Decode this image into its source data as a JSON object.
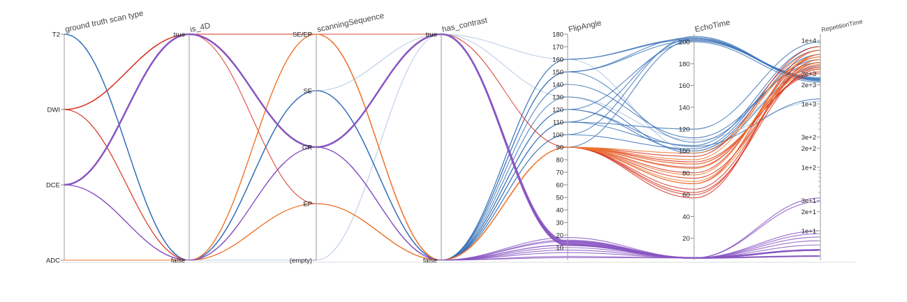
{
  "chart_data": {
    "type": "parallel-coordinates",
    "axes": [
      {
        "name": "ground truth scan type",
        "kind": "category",
        "ticks": [
          "T2",
          "DWI",
          "DCE",
          "ADC"
        ]
      },
      {
        "name": "is_4D",
        "kind": "category",
        "ticks": [
          "true",
          "false"
        ]
      },
      {
        "name": "scanningSequence",
        "kind": "category",
        "ticks": [
          "SE/EP",
          "SE",
          "GR",
          "EP",
          "(empty)"
        ]
      },
      {
        "name": "has_contrast",
        "kind": "category",
        "ticks": [
          "true",
          "false"
        ]
      },
      {
        "name": "FlipAngle",
        "kind": "linear",
        "range": [
          0,
          180
        ],
        "ticks": [
          10,
          20,
          30,
          40,
          50,
          60,
          70,
          80,
          90,
          100,
          110,
          120,
          130,
          140,
          150,
          160,
          170,
          180
        ]
      },
      {
        "name": "EchoTime",
        "kind": "linear",
        "range": [
          0,
          207
        ],
        "ticks": [
          20,
          40,
          60,
          80,
          100,
          120,
          140,
          160,
          180,
          200
        ]
      },
      {
        "name": "RepetitionTime",
        "kind": "log",
        "range": [
          3.45,
          12560
        ],
        "ticks": [
          "1e+4",
          "3e+3",
          "2e+3",
          "1e+3",
          "3e+2",
          "2e+2",
          "1e+2",
          "3e+1",
          "2e+1",
          "1e+1"
        ],
        "tick_values": [
          10000,
          3000,
          2000,
          1000,
          300,
          200,
          100,
          30,
          20,
          10
        ]
      }
    ],
    "color_by": "ground truth scan type",
    "colors": {
      "T2": "#3b73b9",
      "DWI": "#d7301f",
      "DCE": "#8856c2",
      "ADC": "#f0782d"
    },
    "records": [
      [
        "T2",
        "false",
        "SE",
        "false",
        160,
        203,
        2500
      ],
      [
        "T2",
        "false",
        "SE",
        "false",
        160,
        202,
        2400
      ],
      [
        "T2",
        "false",
        "SE",
        "false",
        150,
        204,
        2300
      ],
      [
        "T2",
        "false",
        "SE",
        "false",
        150,
        201,
        2600
      ],
      [
        "T2",
        "false",
        "SE",
        "false",
        120,
        200,
        2200
      ],
      [
        "T2",
        "false",
        "SE",
        "false",
        110,
        203,
        2450
      ],
      [
        "T2",
        "false",
        "SE",
        "false",
        100,
        205,
        2350
      ],
      [
        "T2",
        "false",
        "SE",
        "false",
        90,
        202,
        2500
      ],
      [
        "T2",
        "false",
        "SE",
        "false",
        120,
        100,
        6000
      ],
      [
        "T2",
        "false",
        "SE",
        "false",
        110,
        120,
        9500
      ],
      [
        "T2",
        "false",
        "SE",
        "false",
        110,
        105,
        8000
      ],
      [
        "T2",
        "false",
        "SE",
        "false",
        100,
        102,
        7000
      ],
      [
        "T2",
        "false",
        "SE",
        "false",
        150,
        108,
        5000
      ],
      [
        "T2",
        "false",
        "SE",
        "false",
        140,
        112,
        4500
      ],
      [
        "T2",
        "false",
        "SE",
        "false",
        130,
        98,
        3800
      ],
      [
        "T2",
        "false",
        "SE",
        "false",
        120,
        104,
        1200
      ],
      [
        "T2",
        "false",
        "SE",
        "true",
        160,
        100,
        4000
      ],
      [
        "T2",
        "false",
        "(empty)",
        "true",
        130,
        110,
        1100
      ],
      [
        "DWI",
        "true",
        "SE/EP",
        "false",
        90,
        60,
        5000
      ],
      [
        "DWI",
        "true",
        "SE/EP",
        "false",
        90,
        57,
        6000
      ],
      [
        "DWI",
        "true",
        "SE/EP",
        "false",
        90,
        65,
        4500
      ],
      [
        "DWI",
        "true",
        "SE/EP",
        "false",
        90,
        70,
        7000
      ],
      [
        "DWI",
        "true",
        "SE/EP",
        "false",
        90,
        75,
        3500
      ],
      [
        "DWI",
        "true",
        "SE/EP",
        "false",
        90,
        80,
        5500
      ],
      [
        "DWI",
        "true",
        "SE/EP",
        "false",
        90,
        85,
        4000
      ],
      [
        "DWI",
        "true",
        "EP",
        "false",
        90,
        62,
        3800
      ],
      [
        "DWI",
        "false",
        "SE/EP",
        "false",
        90,
        95,
        8000
      ],
      [
        "DWI",
        "false",
        "EP",
        "false",
        90,
        88,
        3200
      ],
      [
        "DWI",
        "true",
        "SE/EP",
        "true",
        90,
        90,
        3000
      ],
      [
        "ADC",
        "false",
        "SE/EP",
        "false",
        90,
        72,
        5000
      ],
      [
        "ADC",
        "false",
        "SE/EP",
        "false",
        90,
        78,
        6000
      ],
      [
        "ADC",
        "false",
        "SE/EP",
        "false",
        90,
        84,
        4500
      ],
      [
        "ADC",
        "false",
        "SE/EP",
        "false",
        90,
        92,
        7000
      ],
      [
        "ADC",
        "false",
        "SE/EP",
        "false",
        90,
        98,
        5500
      ],
      [
        "ADC",
        "false",
        "EP",
        "false",
        90,
        70,
        4200
      ],
      [
        "ADC",
        "false",
        "EP",
        "false",
        90,
        88,
        3600
      ],
      [
        "DCE",
        "true",
        "GR",
        "true",
        12,
        2,
        5
      ],
      [
        "DCE",
        "true",
        "GR",
        "true",
        13,
        2,
        5
      ],
      [
        "DCE",
        "true",
        "GR",
        "true",
        14,
        2,
        5
      ],
      [
        "DCE",
        "true",
        "GR",
        "true",
        15,
        2,
        5
      ],
      [
        "DCE",
        "true",
        "GR",
        "true",
        12,
        2,
        4
      ],
      [
        "DCE",
        "true",
        "GR",
        "false",
        15,
        2,
        33
      ],
      [
        "DCE",
        "true",
        "GR",
        "false",
        12,
        2,
        29
      ],
      [
        "DCE",
        "false",
        "GR",
        "false",
        18,
        2,
        9
      ],
      [
        "DCE",
        "false",
        "GR",
        "false",
        16,
        2,
        8
      ],
      [
        "DCE",
        "false",
        "GR",
        "false",
        10,
        2,
        7
      ],
      [
        "DCE",
        "false",
        "GR",
        "false",
        8,
        2,
        6
      ],
      [
        "DCE",
        "false",
        "GR",
        "false",
        6,
        2,
        5
      ],
      [
        "DCE",
        "false",
        "GR",
        "false",
        3,
        2,
        4
      ],
      [
        "DCE",
        "false",
        "GR",
        "false",
        2,
        2,
        4
      ],
      [
        "DCE",
        "true",
        "GR",
        "false",
        12,
        2,
        10
      ]
    ]
  }
}
